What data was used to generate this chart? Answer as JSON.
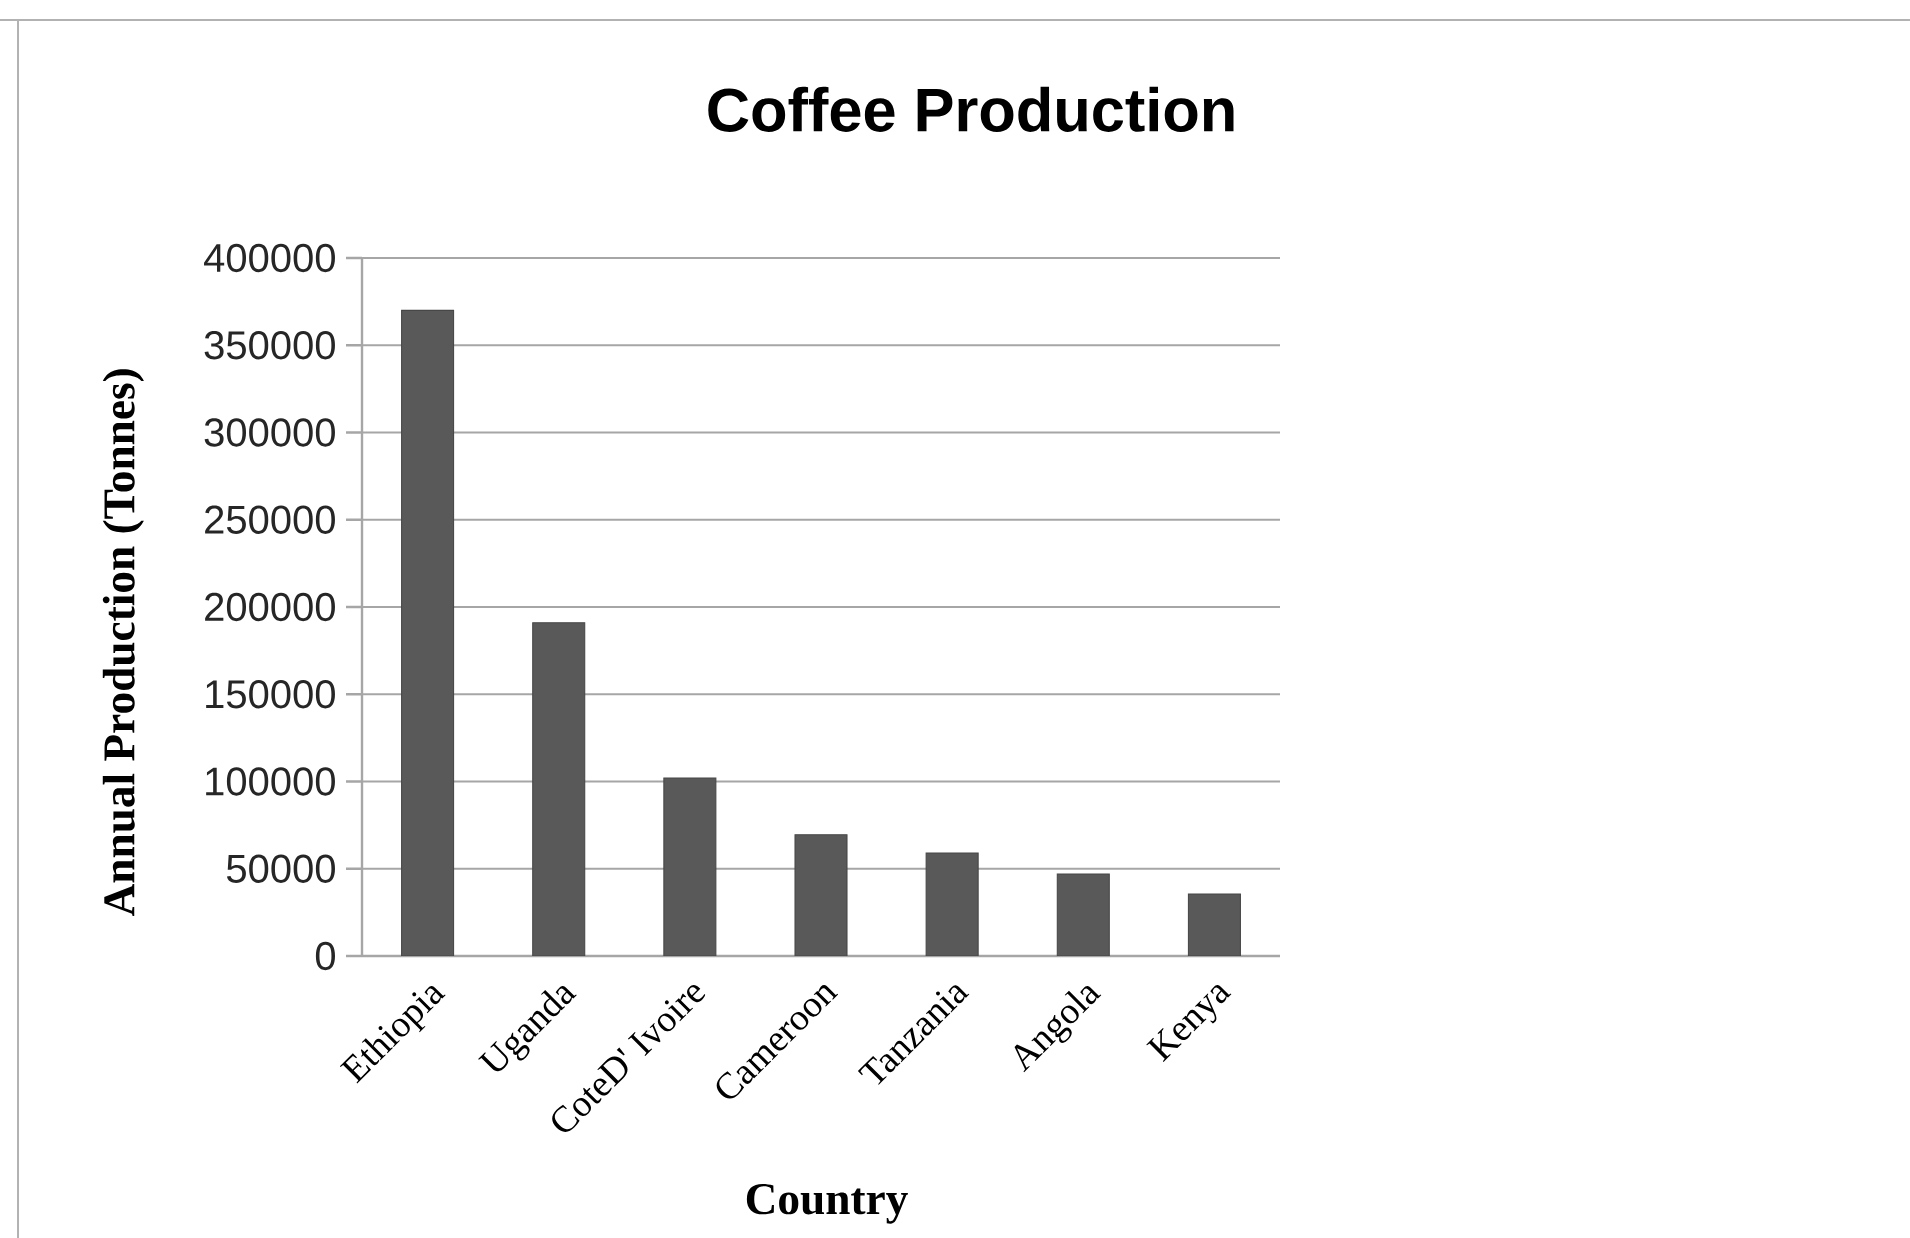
{
  "chart_data": {
    "type": "bar",
    "title": "Coffee Production",
    "xlabel": "Country",
    "ylabel": "Annual Production (Tonnes)",
    "categories": [
      "Ethiopia",
      "Uganda",
      "CoteD' Ivoire",
      "Cameroon",
      "Tanzania",
      "Angola",
      "Kenya"
    ],
    "values": [
      370000,
      191000,
      102000,
      69500,
      59000,
      47000,
      35500
    ],
    "color": "#595959",
    "ylim": [
      0,
      400000
    ],
    "yticks": [
      0,
      50000,
      100000,
      150000,
      200000,
      250000,
      300000,
      350000,
      400000
    ],
    "grid": "y"
  }
}
